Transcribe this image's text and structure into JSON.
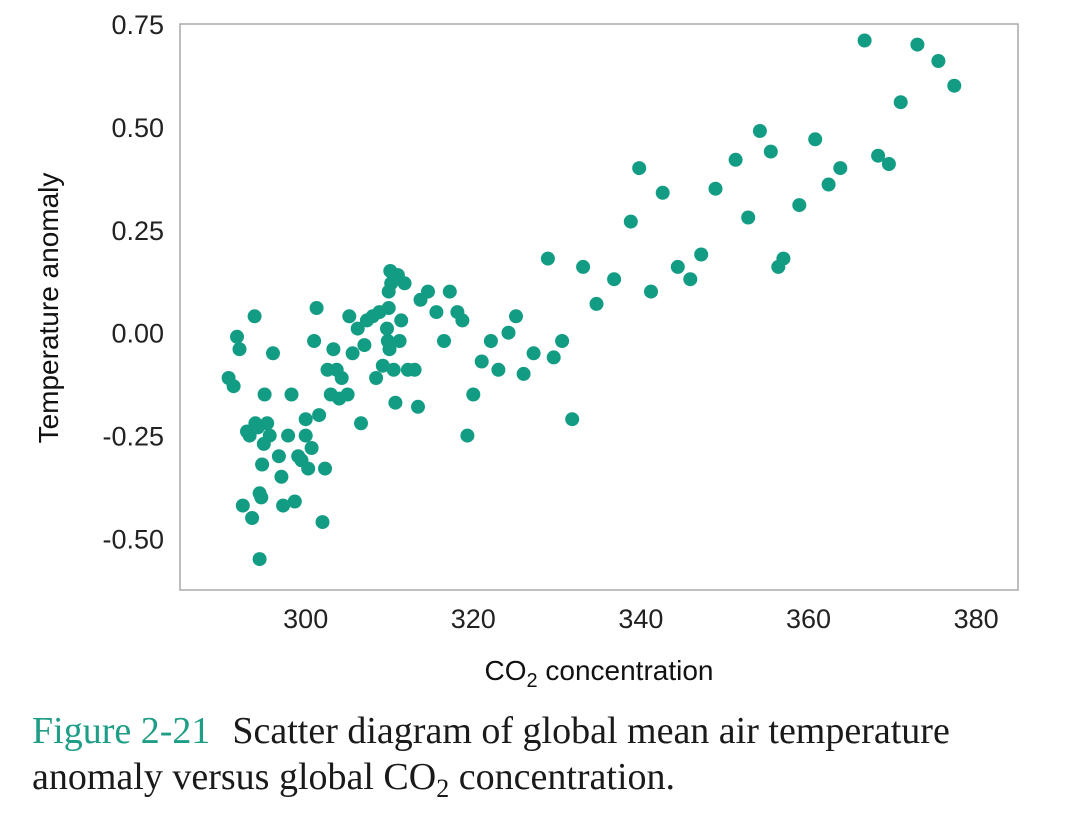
{
  "chart_data": {
    "type": "scatter",
    "xlabel": {
      "pre": "CO",
      "sub": "2",
      "post": " concentration"
    },
    "ylabel": "Temperature anomaly",
    "xlim": [
      285,
      385
    ],
    "ylim": [
      -0.625,
      0.75
    ],
    "xticks": [
      300,
      320,
      340,
      360,
      380
    ],
    "xtick_labels": [
      "300",
      "320",
      "340",
      "360",
      "380"
    ],
    "yticks": [
      0.75,
      0.5,
      0.25,
      0.0,
      -0.25,
      -0.5
    ],
    "ytick_labels": [
      "0.75",
      "0.50",
      "0.25",
      "0.00",
      "-0.25",
      "-0.50"
    ],
    "grid": false,
    "marker_color": "#139c84",
    "points": [
      [
        290.8,
        -0.11
      ],
      [
        291.4,
        -0.13
      ],
      [
        291.8,
        -0.01
      ],
      [
        292.1,
        -0.04
      ],
      [
        292.5,
        -0.42
      ],
      [
        293.0,
        -0.24
      ],
      [
        293.3,
        -0.25
      ],
      [
        293.6,
        -0.45
      ],
      [
        293.9,
        0.04
      ],
      [
        294.0,
        -0.22
      ],
      [
        294.3,
        -0.23
      ],
      [
        294.5,
        -0.39
      ],
      [
        294.7,
        -0.4
      ],
      [
        294.5,
        -0.55
      ],
      [
        294.8,
        -0.32
      ],
      [
        295.0,
        -0.27
      ],
      [
        295.1,
        -0.15
      ],
      [
        295.4,
        -0.22
      ],
      [
        295.7,
        -0.25
      ],
      [
        296.1,
        -0.05
      ],
      [
        296.8,
        -0.3
      ],
      [
        297.1,
        -0.35
      ],
      [
        297.3,
        -0.42
      ],
      [
        297.9,
        -0.25
      ],
      [
        298.3,
        -0.15
      ],
      [
        298.7,
        -0.41
      ],
      [
        299.1,
        -0.3
      ],
      [
        299.5,
        -0.31
      ],
      [
        300.0,
        -0.21
      ],
      [
        300.0,
        -0.25
      ],
      [
        300.3,
        -0.33
      ],
      [
        300.7,
        -0.28
      ],
      [
        301.0,
        -0.02
      ],
      [
        301.3,
        0.06
      ],
      [
        301.6,
        -0.2
      ],
      [
        302.0,
        -0.46
      ],
      [
        302.3,
        -0.33
      ],
      [
        302.6,
        -0.09
      ],
      [
        303.0,
        -0.15
      ],
      [
        303.3,
        -0.04
      ],
      [
        303.7,
        -0.09
      ],
      [
        304.0,
        -0.16
      ],
      [
        304.3,
        -0.11
      ],
      [
        305.0,
        -0.15
      ],
      [
        305.2,
        0.04
      ],
      [
        305.6,
        -0.05
      ],
      [
        306.2,
        0.01
      ],
      [
        306.6,
        -0.22
      ],
      [
        307.0,
        -0.03
      ],
      [
        307.3,
        0.03
      ],
      [
        308.0,
        0.04
      ],
      [
        308.4,
        -0.11
      ],
      [
        308.8,
        0.05
      ],
      [
        309.2,
        -0.08
      ],
      [
        309.7,
        0.01
      ],
      [
        309.8,
        -0.02
      ],
      [
        309.9,
        0.06
      ],
      [
        310.0,
        -0.04
      ],
      [
        309.9,
        0.1
      ],
      [
        310.1,
        0.15
      ],
      [
        310.2,
        0.12
      ],
      [
        310.5,
        -0.09
      ],
      [
        310.7,
        -0.17
      ],
      [
        311.0,
        0.14
      ],
      [
        311.2,
        -0.02
      ],
      [
        311.4,
        0.03
      ],
      [
        311.8,
        0.12
      ],
      [
        312.2,
        -0.09
      ],
      [
        313.0,
        -0.09
      ],
      [
        313.4,
        -0.18
      ],
      [
        313.7,
        0.08
      ],
      [
        314.6,
        0.1
      ],
      [
        315.6,
        0.05
      ],
      [
        316.5,
        -0.02
      ],
      [
        317.2,
        0.1
      ],
      [
        318.1,
        0.05
      ],
      [
        318.7,
        0.03
      ],
      [
        319.3,
        -0.25
      ],
      [
        320.0,
        -0.15
      ],
      [
        321.0,
        -0.07
      ],
      [
        322.1,
        -0.02
      ],
      [
        323.0,
        -0.09
      ],
      [
        324.2,
        0.0
      ],
      [
        325.1,
        0.04
      ],
      [
        326.0,
        -0.1
      ],
      [
        327.2,
        -0.05
      ],
      [
        328.9,
        0.18
      ],
      [
        329.6,
        -0.06
      ],
      [
        330.6,
        -0.02
      ],
      [
        331.8,
        -0.21
      ],
      [
        333.1,
        0.16
      ],
      [
        334.7,
        0.07
      ],
      [
        336.8,
        0.13
      ],
      [
        338.8,
        0.27
      ],
      [
        339.8,
        0.4
      ],
      [
        341.2,
        0.1
      ],
      [
        342.6,
        0.34
      ],
      [
        344.4,
        0.16
      ],
      [
        345.9,
        0.13
      ],
      [
        347.2,
        0.19
      ],
      [
        348.9,
        0.35
      ],
      [
        351.3,
        0.42
      ],
      [
        352.8,
        0.28
      ],
      [
        354.2,
        0.49
      ],
      [
        355.5,
        0.44
      ],
      [
        356.4,
        0.16
      ],
      [
        357.0,
        0.18
      ],
      [
        358.9,
        0.31
      ],
      [
        360.8,
        0.47
      ],
      [
        362.4,
        0.36
      ],
      [
        363.8,
        0.4
      ],
      [
        366.7,
        0.71
      ],
      [
        368.3,
        0.43
      ],
      [
        369.6,
        0.41
      ],
      [
        371.0,
        0.56
      ],
      [
        373.0,
        0.7
      ],
      [
        375.5,
        0.66
      ],
      [
        377.4,
        0.6
      ]
    ]
  },
  "caption": {
    "label": "Figure 2-21",
    "line1": "Scatter diagram of global mean air temperature",
    "line2_pre": "anomaly versus global CO",
    "line2_sub": "2",
    "line2_post": " concentration."
  }
}
